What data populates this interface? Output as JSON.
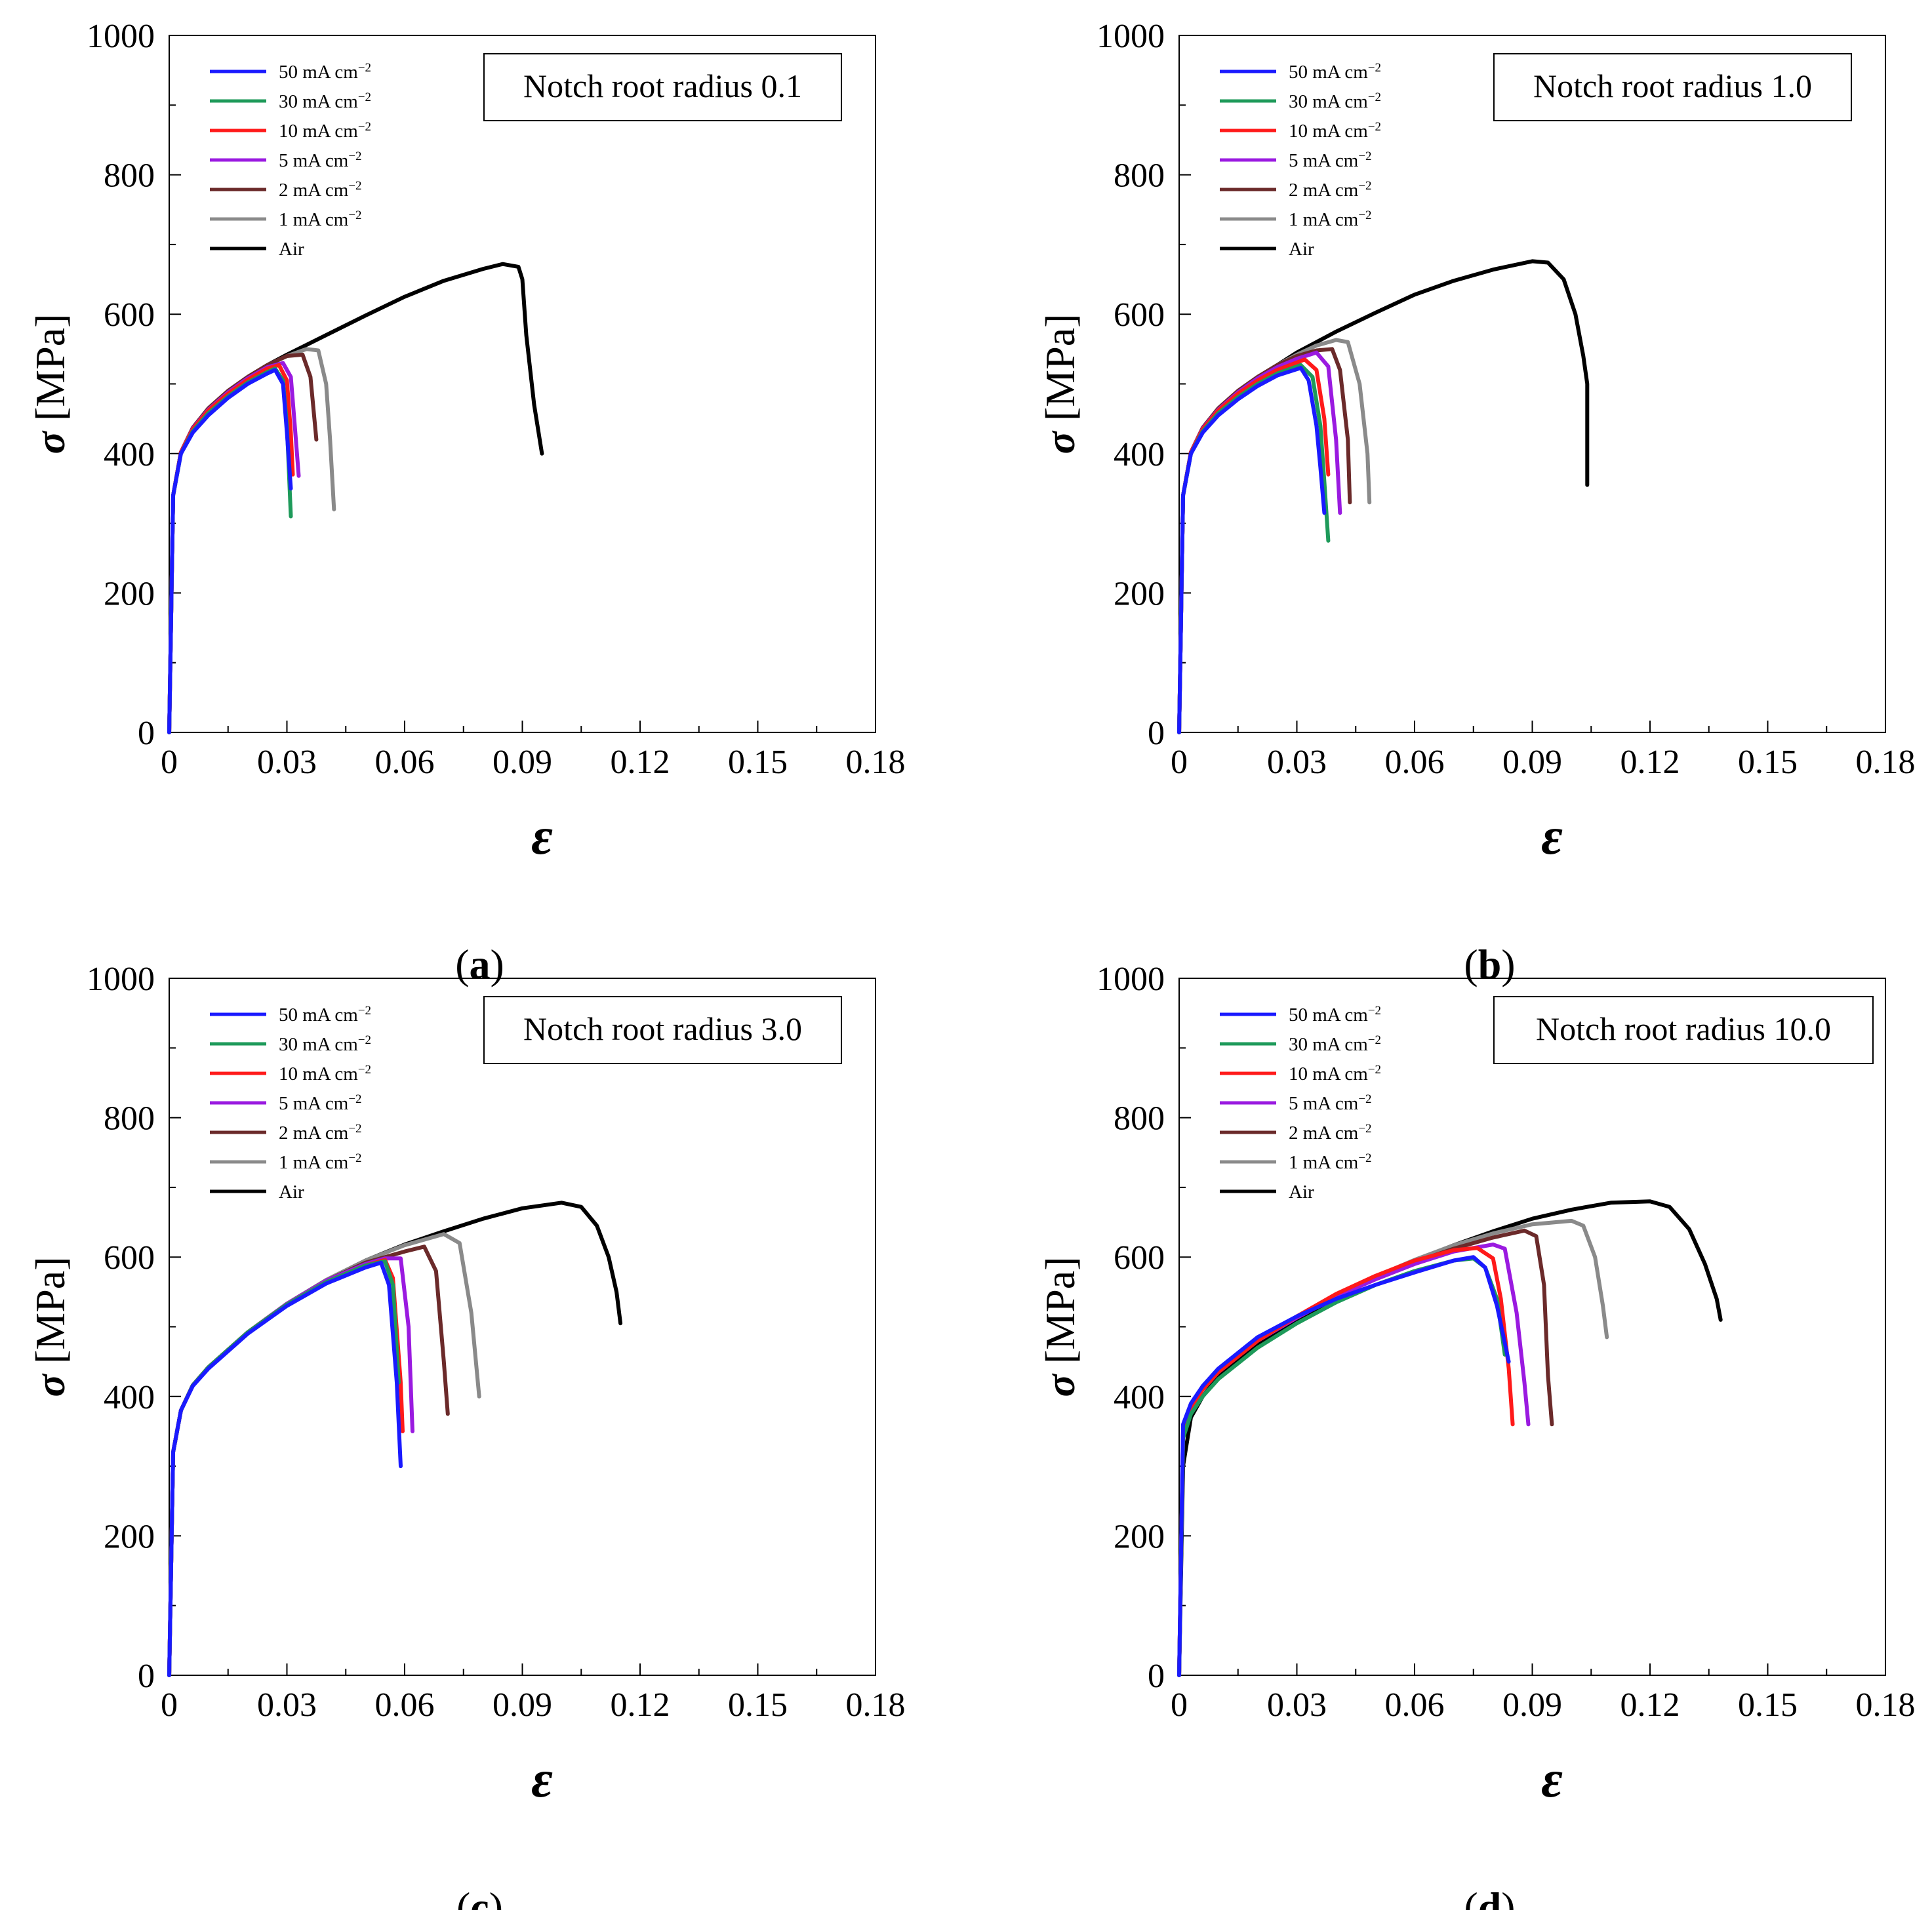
{
  "figure": {
    "legend_labels": [
      {
        "name": "50 mA cm",
        "sup": "−2",
        "color": "#1a1aff"
      },
      {
        "name": "30 mA cm",
        "sup": "−2",
        "color": "#1e9a5a"
      },
      {
        "name": "10 mA cm",
        "sup": "−2",
        "color": "#ff1a1a"
      },
      {
        "name": "5 mA cm",
        "sup": "−2",
        "color": "#9a1ae0"
      },
      {
        "name": "2 mA cm",
        "sup": "−2",
        "color": "#6b2a2a"
      },
      {
        "name": "1 mA cm",
        "sup": "−2",
        "color": "#8a8a8a"
      },
      {
        "name": "Air",
        "sup": "",
        "color": "#000000"
      }
    ],
    "xlabel": "ε",
    "ylabel_symbol": "σ",
    "ylabel_unit": "[MPa]",
    "x_ticks": [
      "0",
      "0.03",
      "0.06",
      "0.09",
      "0.12",
      "0.15",
      "0.18"
    ],
    "y_ticks": [
      "0",
      "200",
      "400",
      "600",
      "800",
      "1000"
    ]
  },
  "chart_data": [
    {
      "type": "line",
      "panel": "(a)",
      "annotation": "Notch root radius 0.1",
      "xlabel": "ε",
      "ylabel": "σ [MPa]",
      "xlim": [
        0,
        0.18
      ],
      "ylim": [
        0,
        1000
      ],
      "series": [
        {
          "name": "50 mA cm-2",
          "x": [
            0,
            0.001,
            0.003,
            0.006,
            0.01,
            0.015,
            0.02,
            0.025,
            0.027,
            0.029,
            0.03,
            0.031
          ],
          "y": [
            0,
            340,
            400,
            430,
            455,
            480,
            500,
            515,
            520,
            500,
            430,
            350
          ]
        },
        {
          "name": "30 mA cm-2",
          "x": [
            0,
            0.001,
            0.003,
            0.006,
            0.01,
            0.015,
            0.02,
            0.025,
            0.027,
            0.029,
            0.03,
            0.031
          ],
          "y": [
            0,
            340,
            400,
            432,
            458,
            482,
            502,
            517,
            522,
            505,
            440,
            310
          ]
        },
        {
          "name": "10 mA cm-2",
          "x": [
            0,
            0.001,
            0.003,
            0.006,
            0.01,
            0.015,
            0.02,
            0.025,
            0.028,
            0.03,
            0.031,
            0.0315
          ],
          "y": [
            0,
            340,
            402,
            435,
            462,
            486,
            506,
            522,
            527,
            505,
            430,
            370
          ]
        },
        {
          "name": "5 mA cm-2",
          "x": [
            0,
            0.001,
            0.003,
            0.006,
            0.01,
            0.015,
            0.02,
            0.025,
            0.029,
            0.031,
            0.032,
            0.033
          ],
          "y": [
            0,
            340,
            402,
            436,
            463,
            488,
            508,
            524,
            530,
            510,
            440,
            368
          ]
        },
        {
          "name": "2 mA cm-2",
          "x": [
            0,
            0.001,
            0.003,
            0.006,
            0.01,
            0.015,
            0.02,
            0.025,
            0.03,
            0.034,
            0.036,
            0.037,
            0.0375
          ],
          "y": [
            0,
            340,
            402,
            437,
            465,
            490,
            510,
            527,
            540,
            542,
            510,
            450,
            420
          ]
        },
        {
          "name": "1 mA cm-2",
          "x": [
            0,
            0.001,
            0.003,
            0.006,
            0.01,
            0.015,
            0.02,
            0.025,
            0.03,
            0.035,
            0.038,
            0.04,
            0.041,
            0.042
          ],
          "y": [
            0,
            340,
            402,
            437,
            465,
            490,
            510,
            527,
            540,
            550,
            548,
            500,
            420,
            320
          ]
        },
        {
          "name": "Air",
          "x": [
            0,
            0.001,
            0.003,
            0.006,
            0.01,
            0.015,
            0.02,
            0.025,
            0.03,
            0.04,
            0.05,
            0.06,
            0.07,
            0.08,
            0.085,
            0.089,
            0.09,
            0.091,
            0.093,
            0.095
          ],
          "y": [
            0,
            340,
            402,
            437,
            465,
            490,
            510,
            527,
            542,
            570,
            598,
            625,
            648,
            665,
            672,
            668,
            650,
            570,
            470,
            400
          ]
        }
      ]
    },
    {
      "type": "line",
      "panel": "(b)",
      "annotation": "Notch root radius 1.0",
      "xlabel": "ε",
      "ylabel": "σ [MPa]",
      "xlim": [
        0,
        0.18
      ],
      "ylim": [
        0,
        1000
      ],
      "series": [
        {
          "name": "50 mA cm-2",
          "x": [
            0,
            0.001,
            0.003,
            0.006,
            0.01,
            0.015,
            0.02,
            0.025,
            0.031,
            0.033,
            0.035,
            0.036,
            0.037
          ],
          "y": [
            0,
            340,
            400,
            430,
            455,
            478,
            497,
            512,
            523,
            505,
            440,
            380,
            315
          ]
        },
        {
          "name": "30 mA cm-2",
          "x": [
            0,
            0.001,
            0.003,
            0.006,
            0.01,
            0.015,
            0.02,
            0.025,
            0.031,
            0.034,
            0.036,
            0.037,
            0.038
          ],
          "y": [
            0,
            340,
            400,
            432,
            458,
            481,
            500,
            515,
            527,
            510,
            440,
            360,
            275
          ]
        },
        {
          "name": "10 mA cm-2",
          "x": [
            0,
            0.001,
            0.003,
            0.006,
            0.01,
            0.015,
            0.02,
            0.025,
            0.032,
            0.035,
            0.037,
            0.038
          ],
          "y": [
            0,
            340,
            402,
            435,
            462,
            486,
            505,
            520,
            535,
            520,
            450,
            370
          ]
        },
        {
          "name": "5 mA cm-2",
          "x": [
            0,
            0.001,
            0.003,
            0.006,
            0.01,
            0.015,
            0.02,
            0.025,
            0.03,
            0.035,
            0.038,
            0.04,
            0.041
          ],
          "y": [
            0,
            340,
            402,
            436,
            463,
            488,
            508,
            524,
            536,
            545,
            525,
            420,
            315
          ]
        },
        {
          "name": "2 mA cm-2",
          "x": [
            0,
            0.001,
            0.003,
            0.006,
            0.01,
            0.015,
            0.02,
            0.025,
            0.03,
            0.035,
            0.039,
            0.041,
            0.043,
            0.0435
          ],
          "y": [
            0,
            340,
            402,
            437,
            465,
            490,
            510,
            527,
            540,
            548,
            550,
            520,
            420,
            330
          ]
        },
        {
          "name": "1 mA cm-2",
          "x": [
            0,
            0.001,
            0.003,
            0.006,
            0.01,
            0.015,
            0.02,
            0.025,
            0.03,
            0.035,
            0.04,
            0.043,
            0.046,
            0.048,
            0.0485
          ],
          "y": [
            0,
            340,
            402,
            437,
            465,
            490,
            510,
            527,
            542,
            555,
            563,
            560,
            500,
            400,
            330
          ]
        },
        {
          "name": "Air",
          "x": [
            0,
            0.001,
            0.003,
            0.006,
            0.01,
            0.015,
            0.02,
            0.025,
            0.03,
            0.04,
            0.05,
            0.06,
            0.07,
            0.08,
            0.09,
            0.094,
            0.098,
            0.101,
            0.103,
            0.104,
            0.104
          ],
          "y": [
            0,
            340,
            402,
            437,
            465,
            490,
            510,
            527,
            545,
            575,
            602,
            628,
            648,
            664,
            676,
            674,
            650,
            600,
            540,
            500,
            355
          ]
        }
      ]
    },
    {
      "type": "line",
      "panel": "(c)",
      "annotation": "Notch root radius 3.0",
      "xlabel": "ε",
      "ylabel": "σ [MPa]",
      "xlim": [
        0,
        0.18
      ],
      "ylim": [
        0,
        1000
      ],
      "series": [
        {
          "name": "50 mA cm-2",
          "x": [
            0,
            0.001,
            0.003,
            0.006,
            0.01,
            0.02,
            0.03,
            0.04,
            0.05,
            0.054,
            0.056,
            0.058,
            0.059
          ],
          "y": [
            0,
            320,
            380,
            415,
            440,
            490,
            530,
            562,
            585,
            592,
            560,
            420,
            300
          ]
        },
        {
          "name": "30 mA cm-2",
          "x": [
            0,
            0.001,
            0.003,
            0.006,
            0.01,
            0.02,
            0.03,
            0.04,
            0.05,
            0.055,
            0.057,
            0.0585
          ],
          "y": [
            0,
            320,
            380,
            416,
            442,
            492,
            532,
            564,
            588,
            594,
            560,
            420
          ]
        },
        {
          "name": "10 mA cm-2",
          "x": [
            0,
            0.001,
            0.003,
            0.006,
            0.01,
            0.02,
            0.03,
            0.04,
            0.05,
            0.055,
            0.057,
            0.059,
            0.0595
          ],
          "y": [
            0,
            320,
            380,
            416,
            442,
            492,
            532,
            564,
            588,
            596,
            570,
            420,
            350
          ]
        },
        {
          "name": "5 mA cm-2",
          "x": [
            0,
            0.001,
            0.003,
            0.006,
            0.01,
            0.02,
            0.03,
            0.04,
            0.05,
            0.055,
            0.059,
            0.061,
            0.062
          ],
          "y": [
            0,
            320,
            380,
            416,
            442,
            492,
            533,
            566,
            590,
            598,
            598,
            500,
            350
          ]
        },
        {
          "name": "2 mA cm-2",
          "x": [
            0,
            0.001,
            0.003,
            0.006,
            0.01,
            0.02,
            0.03,
            0.04,
            0.05,
            0.06,
            0.065,
            0.068,
            0.07,
            0.071
          ],
          "y": [
            0,
            320,
            380,
            416,
            442,
            492,
            533,
            566,
            592,
            608,
            615,
            580,
            450,
            375
          ]
        },
        {
          "name": "1 mA cm-2",
          "x": [
            0,
            0.001,
            0.003,
            0.006,
            0.01,
            0.02,
            0.03,
            0.04,
            0.05,
            0.06,
            0.07,
            0.074,
            0.077,
            0.079
          ],
          "y": [
            0,
            320,
            380,
            416,
            442,
            492,
            533,
            567,
            595,
            617,
            633,
            620,
            520,
            400
          ]
        },
        {
          "name": "Air",
          "x": [
            0,
            0.001,
            0.003,
            0.006,
            0.01,
            0.02,
            0.03,
            0.04,
            0.05,
            0.06,
            0.07,
            0.08,
            0.09,
            0.1,
            0.105,
            0.109,
            0.112,
            0.114,
            0.115
          ],
          "y": [
            0,
            320,
            380,
            416,
            442,
            492,
            533,
            567,
            595,
            618,
            637,
            655,
            670,
            678,
            672,
            645,
            600,
            550,
            505
          ]
        }
      ]
    },
    {
      "type": "line",
      "panel": "(d)",
      "annotation": "Notch root radius 10.0",
      "xlabel": "ε",
      "ylabel": "σ [MPa]",
      "xlim": [
        0,
        0.18
      ],
      "ylim": [
        0,
        1000
      ],
      "series": [
        {
          "name": "50 mA cm-2",
          "x": [
            0,
            0.001,
            0.003,
            0.006,
            0.01,
            0.02,
            0.03,
            0.04,
            0.05,
            0.06,
            0.07,
            0.075,
            0.078,
            0.081,
            0.084
          ],
          "y": [
            0,
            360,
            390,
            415,
            440,
            485,
            515,
            540,
            560,
            578,
            595,
            600,
            585,
            530,
            450
          ]
        },
        {
          "name": "30 mA cm-2",
          "x": [
            0,
            0.001,
            0.003,
            0.006,
            0.01,
            0.02,
            0.03,
            0.04,
            0.05,
            0.06,
            0.07,
            0.075,
            0.078,
            0.081,
            0.083
          ],
          "y": [
            0,
            340,
            375,
            400,
            425,
            470,
            505,
            535,
            560,
            580,
            595,
            598,
            585,
            540,
            460
          ]
        },
        {
          "name": "10 mA cm-2",
          "x": [
            0,
            0.001,
            0.003,
            0.006,
            0.01,
            0.02,
            0.03,
            0.04,
            0.05,
            0.06,
            0.07,
            0.076,
            0.08,
            0.082,
            0.084,
            0.085
          ],
          "y": [
            0,
            350,
            385,
            410,
            435,
            480,
            515,
            547,
            573,
            595,
            610,
            613,
            598,
            540,
            440,
            360
          ]
        },
        {
          "name": "5 mA cm-2",
          "x": [
            0,
            0.001,
            0.003,
            0.006,
            0.01,
            0.02,
            0.03,
            0.04,
            0.05,
            0.06,
            0.07,
            0.08,
            0.083,
            0.086,
            0.088,
            0.089
          ],
          "y": [
            0,
            350,
            385,
            410,
            435,
            480,
            513,
            543,
            568,
            590,
            608,
            618,
            612,
            520,
            420,
            360
          ]
        },
        {
          "name": "2 mA cm-2",
          "x": [
            0,
            0.001,
            0.003,
            0.006,
            0.01,
            0.02,
            0.03,
            0.04,
            0.05,
            0.06,
            0.07,
            0.08,
            0.088,
            0.091,
            0.093,
            0.094,
            0.095
          ],
          "y": [
            0,
            350,
            385,
            410,
            435,
            480,
            514,
            545,
            570,
            593,
            612,
            628,
            638,
            630,
            560,
            430,
            360
          ]
        },
        {
          "name": "1 mA cm-2",
          "x": [
            0,
            0.001,
            0.003,
            0.006,
            0.01,
            0.02,
            0.03,
            0.04,
            0.05,
            0.06,
            0.07,
            0.08,
            0.09,
            0.1,
            0.103,
            0.106,
            0.108,
            0.109
          ],
          "y": [
            0,
            350,
            385,
            410,
            435,
            480,
            514,
            545,
            572,
            596,
            617,
            634,
            647,
            652,
            645,
            600,
            530,
            485
          ]
        },
        {
          "name": "Air",
          "x": [
            0,
            0.001,
            0.003,
            0.006,
            0.01,
            0.02,
            0.03,
            0.04,
            0.05,
            0.06,
            0.07,
            0.08,
            0.09,
            0.1,
            0.11,
            0.12,
            0.125,
            0.13,
            0.134,
            0.137,
            0.138
          ],
          "y": [
            0,
            300,
            370,
            400,
            428,
            475,
            510,
            542,
            570,
            595,
            617,
            637,
            655,
            668,
            678,
            680,
            672,
            640,
            590,
            540,
            510
          ]
        }
      ]
    }
  ]
}
